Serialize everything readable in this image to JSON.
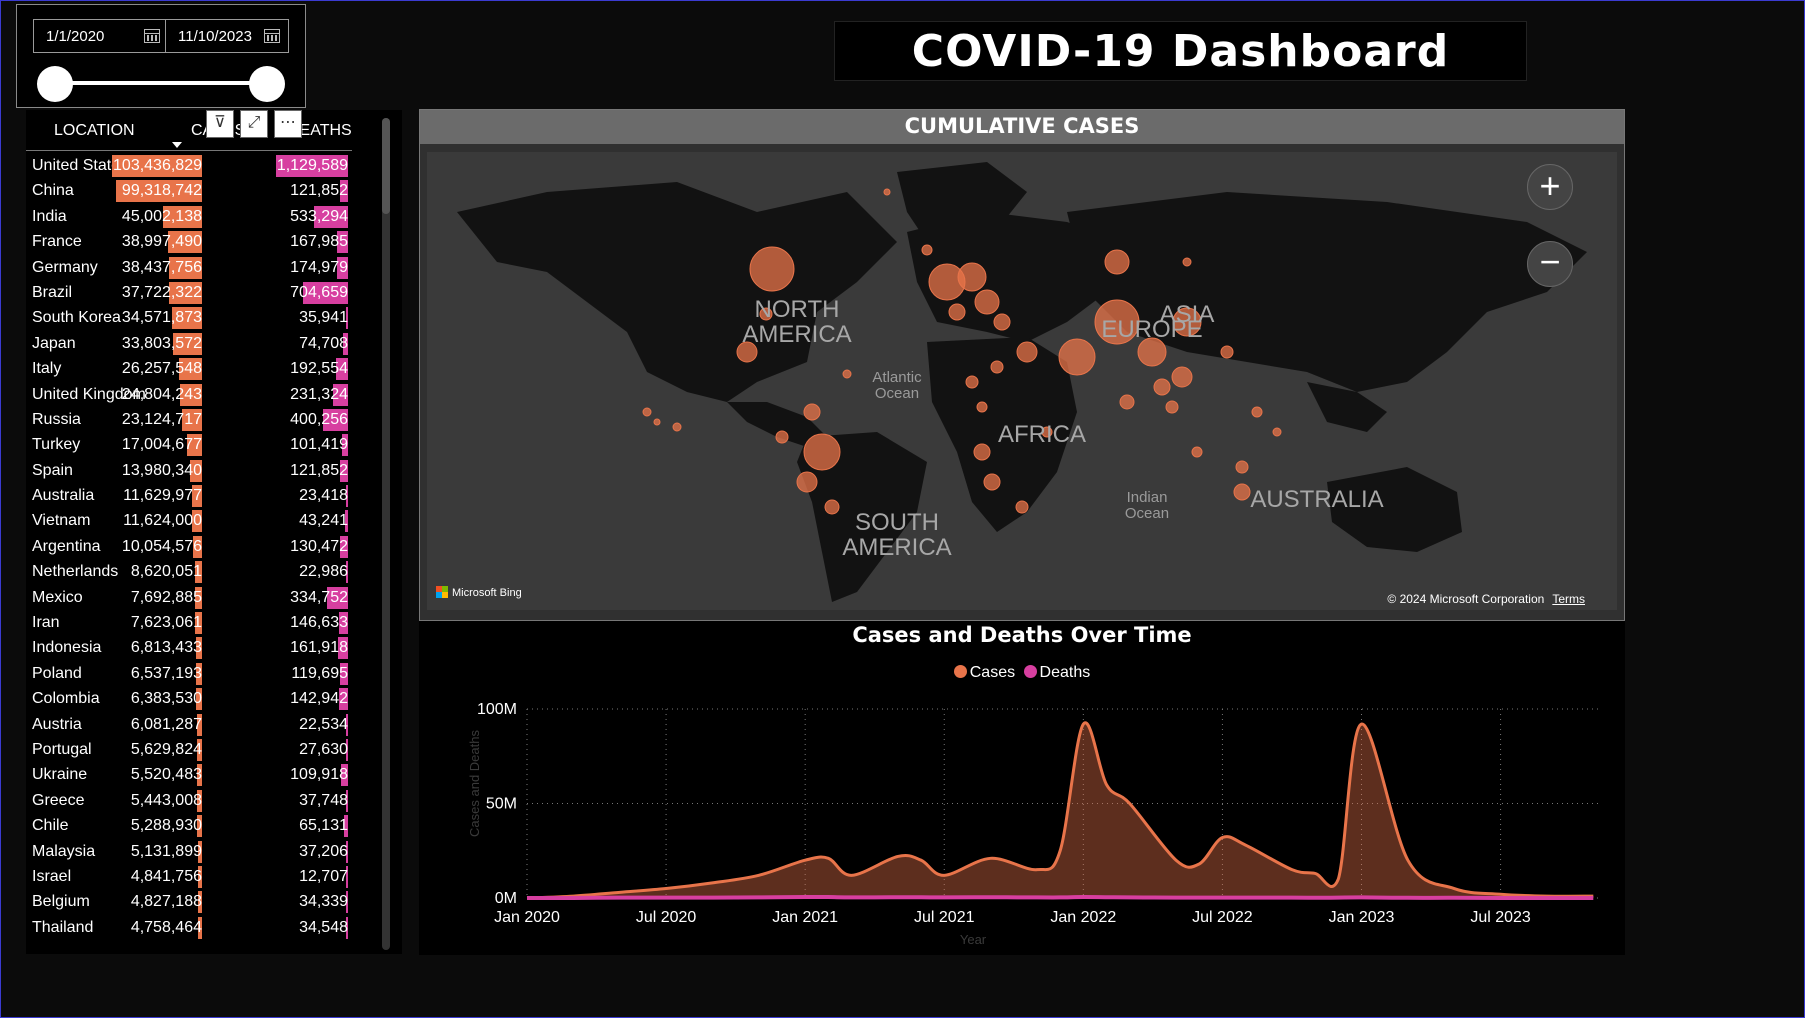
{
  "slicer": {
    "start_date": "1/1/2020",
    "end_date": "11/10/2023",
    "range_start_fraction": 0.0,
    "range_end_fraction": 1.0
  },
  "dashboard": {
    "title": "COVID-19 Dashboard"
  },
  "table": {
    "headers": {
      "location": "LOCATION",
      "cases": "CASES",
      "deaths": "DEATHS"
    },
    "cases_max": 103436829,
    "deaths_max": 1129589,
    "rows": [
      {
        "location": "United States",
        "cases": "103,436,829",
        "deaths": "1,129,589",
        "cases_n": 103436829,
        "deaths_n": 1129589
      },
      {
        "location": "China",
        "cases": "99,318,742",
        "deaths": "121,852",
        "cases_n": 99318742,
        "deaths_n": 121852
      },
      {
        "location": "India",
        "cases": "45,002,138",
        "deaths": "533,294",
        "cases_n": 45002138,
        "deaths_n": 533294
      },
      {
        "location": "France",
        "cases": "38,997,490",
        "deaths": "167,985",
        "cases_n": 38997490,
        "deaths_n": 167985
      },
      {
        "location": "Germany",
        "cases": "38,437,756",
        "deaths": "174,979",
        "cases_n": 38437756,
        "deaths_n": 174979
      },
      {
        "location": "Brazil",
        "cases": "37,722,322",
        "deaths": "704,659",
        "cases_n": 37722322,
        "deaths_n": 704659
      },
      {
        "location": "South Korea",
        "cases": "34,571,873",
        "deaths": "35,941",
        "cases_n": 34571873,
        "deaths_n": 35941
      },
      {
        "location": "Japan",
        "cases": "33,803,572",
        "deaths": "74,708",
        "cases_n": 33803572,
        "deaths_n": 74708
      },
      {
        "location": "Italy",
        "cases": "26,257,548",
        "deaths": "192,554",
        "cases_n": 26257548,
        "deaths_n": 192554
      },
      {
        "location": "United Kingdom",
        "cases": "24,804,243",
        "deaths": "231,324",
        "cases_n": 24804243,
        "deaths_n": 231324
      },
      {
        "location": "Russia",
        "cases": "23,124,717",
        "deaths": "400,256",
        "cases_n": 23124717,
        "deaths_n": 400256
      },
      {
        "location": "Turkey",
        "cases": "17,004,677",
        "deaths": "101,419",
        "cases_n": 17004677,
        "deaths_n": 101419
      },
      {
        "location": "Spain",
        "cases": "13,980,340",
        "deaths": "121,852",
        "cases_n": 13980340,
        "deaths_n": 121852
      },
      {
        "location": "Australia",
        "cases": "11,629,977",
        "deaths": "23,418",
        "cases_n": 11629977,
        "deaths_n": 23418
      },
      {
        "location": "Vietnam",
        "cases": "11,624,000",
        "deaths": "43,241",
        "cases_n": 11624000,
        "deaths_n": 43241
      },
      {
        "location": "Argentina",
        "cases": "10,054,576",
        "deaths": "130,472",
        "cases_n": 10054576,
        "deaths_n": 130472
      },
      {
        "location": "Netherlands",
        "cases": "8,620,051",
        "deaths": "22,986",
        "cases_n": 8620051,
        "deaths_n": 22986
      },
      {
        "location": "Mexico",
        "cases": "7,692,885",
        "deaths": "334,752",
        "cases_n": 7692885,
        "deaths_n": 334752
      },
      {
        "location": "Iran",
        "cases": "7,623,061",
        "deaths": "146,633",
        "cases_n": 7623061,
        "deaths_n": 146633
      },
      {
        "location": "Indonesia",
        "cases": "6,813,433",
        "deaths": "161,918",
        "cases_n": 6813433,
        "deaths_n": 161918
      },
      {
        "location": "Poland",
        "cases": "6,537,193",
        "deaths": "119,695",
        "cases_n": 6537193,
        "deaths_n": 119695
      },
      {
        "location": "Colombia",
        "cases": "6,383,530",
        "deaths": "142,942",
        "cases_n": 6383530,
        "deaths_n": 142942
      },
      {
        "location": "Austria",
        "cases": "6,081,287",
        "deaths": "22,534",
        "cases_n": 6081287,
        "deaths_n": 22534
      },
      {
        "location": "Portugal",
        "cases": "5,629,824",
        "deaths": "27,630",
        "cases_n": 5629824,
        "deaths_n": 27630
      },
      {
        "location": "Ukraine",
        "cases": "5,520,483",
        "deaths": "109,918",
        "cases_n": 5520483,
        "deaths_n": 109918
      },
      {
        "location": "Greece",
        "cases": "5,443,008",
        "deaths": "37,748",
        "cases_n": 5443008,
        "deaths_n": 37748
      },
      {
        "location": "Chile",
        "cases": "5,288,930",
        "deaths": "65,131",
        "cases_n": 5288930,
        "deaths_n": 65131
      },
      {
        "location": "Malaysia",
        "cases": "5,131,899",
        "deaths": "37,206",
        "cases_n": 5131899,
        "deaths_n": 37206
      },
      {
        "location": "Israel",
        "cases": "4,841,756",
        "deaths": "12,707",
        "cases_n": 4841756,
        "deaths_n": 12707
      },
      {
        "location": "Belgium",
        "cases": "4,827,188",
        "deaths": "34,339",
        "cases_n": 4827188,
        "deaths_n": 34339
      },
      {
        "location": "Thailand",
        "cases": "4,758,464",
        "deaths": "34,548",
        "cases_n": 4758464,
        "deaths_n": 34548
      }
    ]
  },
  "map": {
    "title": "CUMULATIVE CASES",
    "labels": {
      "north_america": "NORTH AMERICA",
      "south_america": "SOUTH AMERICA",
      "europe": "EUROPE",
      "africa": "AFRICA",
      "asia": "ASIA",
      "australia": "AUSTRALIA",
      "atlantic": "Atlantic Ocean",
      "indian": "Indian Ocean"
    },
    "attribution": "Microsoft Bing",
    "copyright": "© 2024 Microsoft Corporation",
    "terms": "Terms",
    "zoom_in": "+",
    "zoom_out": "−",
    "bubble_color": "#e8744a"
  },
  "chart_data": {
    "type": "area",
    "title": "Cases and Deaths Over Time",
    "xlabel": "Year",
    "ylabel": "Cases and Deaths",
    "x": [
      "2020-01",
      "2020-03",
      "2020-05",
      "2020-07",
      "2020-09",
      "2020-11",
      "2021-01",
      "2021-02",
      "2021-03",
      "2021-05",
      "2021-06",
      "2021-07",
      "2021-09",
      "2021-11",
      "2021-12",
      "2022-01",
      "2022-02",
      "2022-03",
      "2022-05",
      "2022-06",
      "2022-07",
      "2022-08",
      "2022-10",
      "2022-11",
      "2022-12",
      "2023-01",
      "2023-03",
      "2023-05",
      "2023-07",
      "2023-09",
      "2023-11"
    ],
    "series": [
      {
        "name": "Cases",
        "color": "#e8744a",
        "values": [
          0,
          1,
          3,
          5,
          8,
          12,
          20,
          21,
          12,
          22,
          20,
          12,
          21,
          15,
          25,
          92,
          60,
          50,
          20,
          18,
          32,
          28,
          15,
          13,
          10,
          92,
          20,
          5,
          2,
          1,
          1
        ]
      },
      {
        "name": "Deaths",
        "color": "#d73fa0",
        "values": [
          0,
          0,
          0.2,
          0.2,
          0.2,
          0.3,
          0.5,
          0.5,
          0.3,
          0.4,
          0.4,
          0.3,
          0.4,
          0.3,
          0.3,
          0.5,
          0.4,
          0.3,
          0.2,
          0.2,
          0.2,
          0.2,
          0.2,
          0.1,
          0.2,
          0.3,
          0.1,
          0.1,
          0,
          0,
          0
        ]
      }
    ],
    "y_unit": "M",
    "ylim": [
      0,
      100
    ],
    "y_ticks": [
      "0M",
      "50M",
      "100M"
    ],
    "y_tick_values": [
      0,
      50,
      100
    ],
    "x_ticks": [
      "Jan 2020",
      "Jul 2020",
      "Jan 2021",
      "Jul 2021",
      "Jan 2022",
      "Jul 2022",
      "Jan 2023",
      "Jul 2023"
    ],
    "x_tick_values": [
      "2020-01",
      "2020-07",
      "2021-01",
      "2021-07",
      "2022-01",
      "2022-07",
      "2023-01",
      "2023-07"
    ],
    "grid": true,
    "legend": "top-center"
  }
}
